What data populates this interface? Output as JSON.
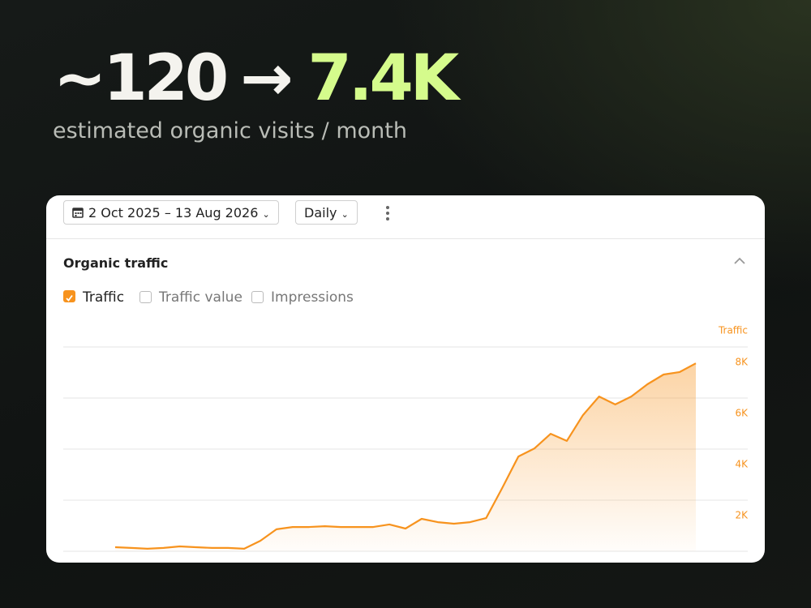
{
  "header": {
    "before": "~120",
    "arrow": "→",
    "after": "7.4K",
    "subtitle": "estimated organic visits / month"
  },
  "toolbar": {
    "date_range": "2 Oct 2025 – 13 Aug 2026",
    "interval": "Daily"
  },
  "panel": {
    "title": "Organic traffic",
    "checkboxes": [
      {
        "label": "Traffic",
        "checked": true
      },
      {
        "label": "Traffic value",
        "checked": false
      },
      {
        "label": "Impressions",
        "checked": false
      }
    ]
  },
  "chart_data": {
    "type": "area",
    "y_label": "Traffic",
    "color": "#f7931e",
    "grid": true,
    "ylim": [
      0,
      8000
    ],
    "yticks": [
      {
        "value": 2000,
        "label": "2K"
      },
      {
        "value": 4000,
        "label": "4K"
      },
      {
        "value": 6000,
        "label": "6K"
      },
      {
        "value": 8000,
        "label": "8K"
      }
    ],
    "values": [
      160,
      130,
      100,
      130,
      190,
      160,
      130,
      130,
      100,
      410,
      860,
      950,
      950,
      980,
      950,
      950,
      950,
      1050,
      890,
      1270,
      1140,
      1080,
      1140,
      1300,
      2480,
      3710,
      4030,
      4600,
      4320,
      5330,
      6060,
      5750,
      6060,
      6540,
      6920,
      7020,
      7360
    ]
  }
}
